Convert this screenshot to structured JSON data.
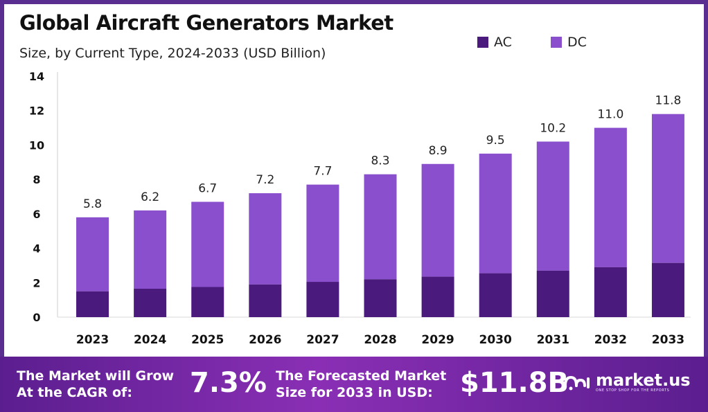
{
  "header": {
    "title": "Global Aircraft Generators Market",
    "subtitle": "Size, by Current Type, 2024-2033 (USD Billion)"
  },
  "colors": {
    "ac": "#4a1a7c",
    "dc": "#8a4fcc",
    "banner_start": "#5b1e8f",
    "banner_end": "#8a2fb5"
  },
  "chart_data": {
    "type": "bar",
    "stacked": true,
    "categories": [
      "2023",
      "2024",
      "2025",
      "2026",
      "2027",
      "2028",
      "2029",
      "2030",
      "2031",
      "2032",
      "2033"
    ],
    "series": [
      {
        "name": "AC",
        "values": [
          1.5,
          1.65,
          1.75,
          1.9,
          2.05,
          2.2,
          2.35,
          2.55,
          2.7,
          2.9,
          3.15
        ]
      },
      {
        "name": "DC",
        "values": [
          4.3,
          4.55,
          4.95,
          5.3,
          5.65,
          6.1,
          6.55,
          6.95,
          7.5,
          8.1,
          8.65
        ]
      }
    ],
    "totals": [
      "5.8",
      "6.2",
      "6.7",
      "7.2",
      "7.7",
      "8.3",
      "8.9",
      "9.5",
      "10.2",
      "11.0",
      "11.8"
    ],
    "ylim": [
      0,
      14
    ],
    "yticks": [
      0,
      2,
      4,
      6,
      8,
      10,
      12,
      14
    ],
    "grid": false,
    "legend_position": "top-right"
  },
  "banner": {
    "cagr_text": "The Market will Grow\nAt the CAGR of:",
    "cagr_value": "7.3%",
    "forecast_text": "The Forecasted Market\nSize for 2033 in USD:",
    "forecast_value": "$11.8B",
    "brand_name": "market.us",
    "brand_tagline": "ONE STOP SHOP FOR THE REPORTS"
  }
}
